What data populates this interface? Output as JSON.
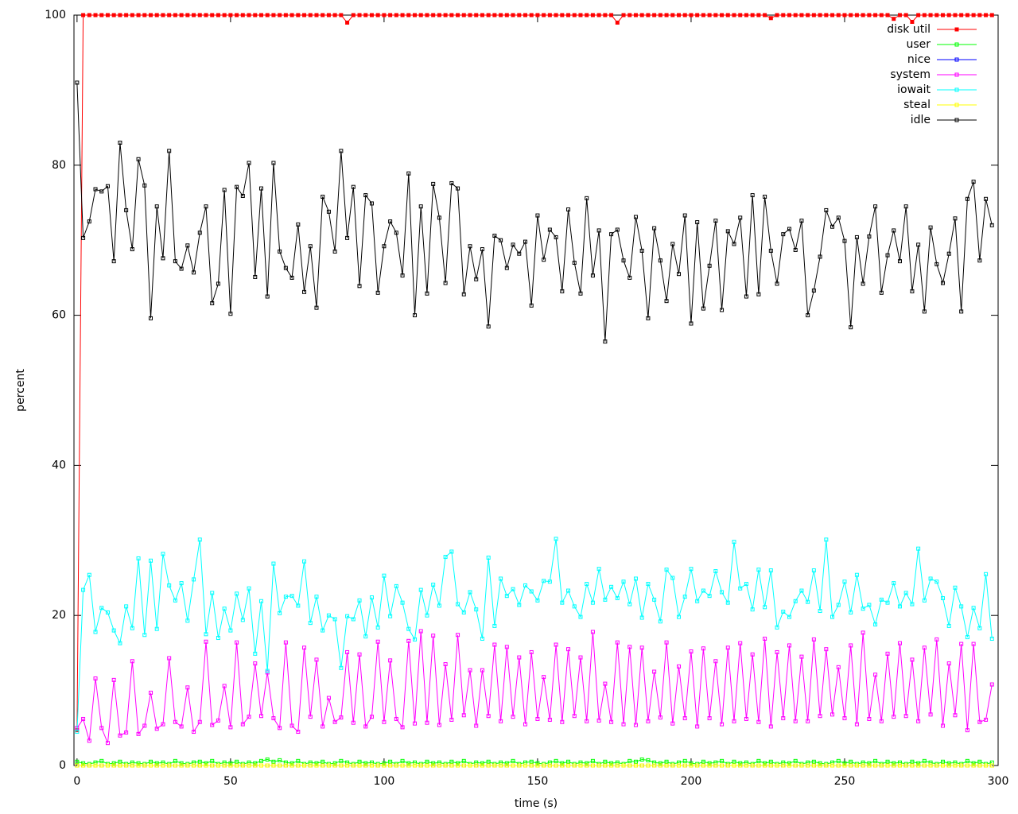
{
  "chart_data": {
    "type": "line",
    "xlabel": "time (s)",
    "ylabel": "percent",
    "xlim": [
      -1,
      300
    ],
    "ylim": [
      0,
      100
    ],
    "xticks": [
      0,
      50,
      100,
      150,
      200,
      250,
      300
    ],
    "yticks": [
      0,
      20,
      40,
      60,
      80,
      100
    ],
    "grid": false,
    "legend": "top-right",
    "x": [
      0,
      2,
      4,
      6,
      8,
      10,
      12,
      14,
      16,
      18,
      20,
      22,
      24,
      26,
      28,
      30,
      32,
      34,
      36,
      38,
      40,
      42,
      44,
      46,
      48,
      50,
      52,
      54,
      56,
      58,
      60,
      62,
      64,
      66,
      68,
      70,
      72,
      74,
      76,
      78,
      80,
      82,
      84,
      86,
      88,
      90,
      92,
      94,
      96,
      98,
      100,
      102,
      104,
      106,
      108,
      110,
      112,
      114,
      116,
      118,
      120,
      122,
      124,
      126,
      128,
      130,
      132,
      134,
      136,
      138,
      140,
      142,
      144,
      146,
      148,
      150,
      152,
      154,
      156,
      158,
      160,
      162,
      164,
      166,
      168,
      170,
      172,
      174,
      176,
      178,
      180,
      182,
      184,
      186,
      188,
      190,
      192,
      194,
      196,
      198,
      200,
      202,
      204,
      206,
      208,
      210,
      212,
      214,
      216,
      218,
      220,
      222,
      224,
      226,
      228,
      230,
      232,
      234,
      236,
      238,
      240,
      242,
      244,
      246,
      248,
      250,
      252,
      254,
      256,
      258,
      260,
      262,
      264,
      266,
      268,
      270,
      272,
      274,
      276,
      278,
      280,
      282,
      284,
      286,
      288,
      290,
      292,
      294,
      296,
      298
    ],
    "series": [
      {
        "name": "disk util",
        "color": "#ff0000",
        "filled": true,
        "values": [
          4.7,
          100,
          100,
          100,
          100,
          100,
          100,
          100,
          100,
          100,
          100,
          100,
          100,
          100,
          100,
          100,
          100,
          100,
          100,
          100,
          100,
          100,
          100,
          100,
          100,
          100,
          100,
          100,
          100,
          100,
          100,
          100,
          100,
          100,
          100,
          100,
          100,
          100,
          100,
          100,
          100,
          100,
          100,
          100,
          99,
          100,
          100,
          100,
          100,
          100,
          100,
          100,
          100,
          100,
          100,
          100,
          100,
          100,
          100,
          100,
          100,
          100,
          100,
          100,
          100,
          100,
          100,
          100,
          100,
          100,
          100,
          100,
          100,
          100,
          100,
          100,
          100,
          100,
          100,
          100,
          100,
          100,
          100,
          100,
          100,
          100,
          100,
          100,
          99,
          100,
          100,
          100,
          100,
          100,
          100,
          100,
          100,
          100,
          100,
          100,
          100,
          100,
          100,
          100,
          100,
          100,
          100,
          100,
          100,
          100,
          100,
          100,
          100,
          99.6,
          100,
          100,
          100,
          100,
          100,
          100,
          100,
          100,
          100,
          100,
          100,
          100,
          100,
          100,
          100,
          100,
          100,
          100,
          100,
          99.5,
          100,
          100,
          99.1,
          100,
          100,
          100,
          100,
          100,
          100,
          100,
          100,
          100,
          100,
          100,
          100,
          100
        ]
      },
      {
        "name": "user",
        "color": "#00ff00",
        "values": [
          0.5,
          0.3,
          0.2,
          0.4,
          0.6,
          0.2,
          0.3,
          0.5,
          0.2,
          0.4,
          0.3,
          0.2,
          0.5,
          0.3,
          0.4,
          0.2,
          0.6,
          0.3,
          0.2,
          0.4,
          0.5,
          0.3,
          0.6,
          0.2,
          0.4,
          0.3,
          0.5,
          0.2,
          0.4,
          0.3,
          0.6,
          0.8,
          0.5,
          0.7,
          0.4,
          0.3,
          0.6,
          0.2,
          0.4,
          0.3,
          0.5,
          0.2,
          0.3,
          0.6,
          0.4,
          0.2,
          0.5,
          0.3,
          0.4,
          0.2,
          0.3,
          0.5,
          0.2,
          0.6,
          0.3,
          0.4,
          0.2,
          0.5,
          0.3,
          0.4,
          0.2,
          0.5,
          0.3,
          0.6,
          0.2,
          0.4,
          0.3,
          0.5,
          0.2,
          0.4,
          0.3,
          0.6,
          0.2,
          0.4,
          0.5,
          0.3,
          0.2,
          0.4,
          0.6,
          0.3,
          0.5,
          0.2,
          0.4,
          0.3,
          0.6,
          0.2,
          0.5,
          0.3,
          0.4,
          0.2,
          0.6,
          0.5,
          0.8,
          0.7,
          0.4,
          0.3,
          0.5,
          0.2,
          0.4,
          0.6,
          0.3,
          0.2,
          0.5,
          0.3,
          0.4,
          0.6,
          0.2,
          0.5,
          0.3,
          0.4,
          0.2,
          0.6,
          0.3,
          0.5,
          0.2,
          0.4,
          0.3,
          0.6,
          0.2,
          0.4,
          0.5,
          0.3,
          0.2,
          0.4,
          0.6,
          0.3,
          0.5,
          0.2,
          0.4,
          0.3,
          0.6,
          0.2,
          0.5,
          0.3,
          0.4,
          0.2,
          0.5,
          0.3,
          0.6,
          0.4,
          0.2,
          0.5,
          0.3,
          0.4,
          0.2,
          0.6,
          0.3,
          0.5,
          0.2,
          0.4
        ]
      },
      {
        "name": "nice",
        "color": "#0000ff",
        "values": [
          0,
          0,
          0,
          0,
          0,
          0,
          0,
          0,
          0,
          0,
          0,
          0,
          0,
          0,
          0,
          0,
          0,
          0,
          0,
          0,
          0,
          0,
          0,
          0,
          0,
          0,
          0,
          0,
          0,
          0,
          0,
          0,
          0,
          0,
          0,
          0,
          0,
          0,
          0,
          0,
          0,
          0,
          0,
          0,
          0,
          0,
          0,
          0,
          0,
          0,
          0,
          0,
          0,
          0,
          0,
          0,
          0,
          0,
          0,
          0,
          0,
          0,
          0,
          0,
          0,
          0,
          0,
          0,
          0,
          0,
          0,
          0,
          0,
          0,
          0,
          0,
          0,
          0,
          0,
          0,
          0,
          0,
          0,
          0,
          0,
          0,
          0,
          0,
          0,
          0,
          0,
          0,
          0,
          0,
          0,
          0,
          0,
          0,
          0,
          0,
          0,
          0,
          0,
          0,
          0,
          0,
          0,
          0,
          0,
          0,
          0,
          0,
          0,
          0,
          0,
          0,
          0,
          0,
          0,
          0,
          0,
          0,
          0,
          0,
          0,
          0,
          0,
          0,
          0,
          0,
          0,
          0,
          0,
          0,
          0,
          0,
          0,
          0,
          0,
          0,
          0,
          0,
          0,
          0,
          0,
          0,
          0,
          0,
          0,
          0
        ]
      },
      {
        "name": "system",
        "color": "#ff00ff",
        "values": [
          5,
          6.2,
          3.3,
          11.6,
          5,
          3,
          11.4,
          4,
          4.4,
          13.9,
          4.2,
          5.3,
          9.7,
          4.9,
          5.5,
          14.3,
          5.8,
          5.2,
          10.4,
          4.5,
          5.8,
          16.5,
          5.4,
          6,
          10.6,
          5.1,
          16.4,
          5.5,
          6.5,
          13.6,
          6.6,
          12.4,
          6.3,
          5,
          16.4,
          5.3,
          4.5,
          15.7,
          6.5,
          14.1,
          5.2,
          9,
          5.8,
          6.4,
          15.1,
          5.7,
          14.8,
          5.2,
          6.5,
          16.5,
          5.8,
          14,
          6.2,
          5.1,
          16.6,
          5.6,
          17.9,
          5.7,
          17.3,
          5.4,
          13.5,
          6.1,
          17.4,
          6.7,
          12.7,
          5.3,
          12.7,
          6.6,
          16.1,
          5.9,
          15.8,
          6.5,
          14.4,
          5.5,
          15.1,
          6.2,
          11.8,
          6.1,
          16.1,
          5.8,
          15.5,
          6.6,
          14.4,
          5.9,
          17.8,
          6,
          10.9,
          5.8,
          16.4,
          5.5,
          15.8,
          5.4,
          15.7,
          5.9,
          12.5,
          6.4,
          16.4,
          5.6,
          13.2,
          6.3,
          15.2,
          5.2,
          15.6,
          6.3,
          13.9,
          5.5,
          15.7,
          5.9,
          16.3,
          6.2,
          14.8,
          5.8,
          16.9,
          5.2,
          15.1,
          6.3,
          16,
          5.9,
          14.5,
          5.9,
          16.8,
          6.6,
          15.5,
          6.8,
          13.1,
          6.3,
          16,
          5.5,
          17.7,
          6.2,
          12.1,
          5.9,
          14.9,
          6.5,
          16.3,
          6.6,
          14.1,
          5.9,
          15.7,
          6.8,
          16.8,
          5.3,
          13.6,
          6.7,
          16.2,
          4.7,
          16.2,
          5.8,
          6.1,
          10.8
        ]
      },
      {
        "name": "iowait",
        "color": "#00ffff",
        "values": [
          4.5,
          23.4,
          25.4,
          17.8,
          21,
          20.4,
          18,
          16.3,
          21.2,
          18.3,
          27.6,
          17.4,
          27.3,
          18.2,
          28.2,
          24,
          22,
          24.3,
          19.3,
          24.8,
          30.1,
          17.5,
          23,
          17,
          20.9,
          18,
          22.9,
          19.4,
          23.6,
          14.9,
          21.9,
          12.6,
          26.9,
          20.3,
          22.5,
          22.6,
          21.3,
          27.2,
          19,
          22.5,
          18,
          20,
          19.5,
          13,
          19.9,
          19.5,
          22,
          17.2,
          22.4,
          18.4,
          25.3,
          19.9,
          23.9,
          21.7,
          18.2,
          16.8,
          23.4,
          20,
          24.1,
          21.3,
          27.8,
          28.5,
          21.5,
          20.4,
          23.1,
          20.8,
          16.9,
          27.7,
          18.6,
          24.9,
          22.6,
          23.5,
          21.4,
          24,
          23.2,
          22,
          24.6,
          24.5,
          30.2,
          21.7,
          23.3,
          21.2,
          19.8,
          24.2,
          21.7,
          26.2,
          22.1,
          23.8,
          22.3,
          24.5,
          21.5,
          24.9,
          19.7,
          24.2,
          22.1,
          19.2,
          26.1,
          25,
          19.8,
          22.5,
          26.2,
          21.9,
          23.3,
          22.6,
          25.9,
          23.1,
          21.7,
          29.8,
          23.6,
          24.2,
          20.8,
          26.1,
          21.1,
          26,
          18.4,
          20.5,
          19.8,
          21.9,
          23.3,
          21.8,
          26,
          20.6,
          30.1,
          19.8,
          21.4,
          24.5,
          20.4,
          25.4,
          20.9,
          21.4,
          18.8,
          22.1,
          21.7,
          24.3,
          21.2,
          23,
          21.5,
          28.9,
          22,
          24.9,
          24.5,
          22.3,
          18.6,
          23.7,
          21.2,
          17.1,
          21,
          18.3,
          25.5,
          16.9
        ]
      },
      {
        "name": "steal",
        "color": "#ffff00",
        "values": [
          0,
          0,
          0,
          0,
          0,
          0,
          0,
          0,
          0,
          0,
          0,
          0,
          0,
          0,
          0,
          0,
          0,
          0,
          0,
          0,
          0,
          0,
          0,
          0,
          0,
          0,
          0,
          0,
          0,
          0,
          0,
          0,
          0,
          0,
          0,
          0,
          0,
          0,
          0,
          0,
          0,
          0,
          0,
          0,
          0,
          0,
          0,
          0,
          0,
          0,
          0,
          0,
          0,
          0,
          0,
          0,
          0,
          0,
          0,
          0,
          0,
          0,
          0,
          0,
          0,
          0,
          0,
          0,
          0,
          0,
          0,
          0,
          0,
          0,
          0,
          0,
          0,
          0,
          0,
          0,
          0,
          0,
          0,
          0,
          0,
          0,
          0,
          0,
          0,
          0,
          0,
          0,
          0,
          0,
          0,
          0,
          0,
          0,
          0,
          0,
          0,
          0,
          0,
          0,
          0,
          0,
          0,
          0,
          0,
          0,
          0,
          0,
          0,
          0,
          0,
          0,
          0,
          0,
          0,
          0,
          0,
          0,
          0,
          0,
          0,
          0,
          0,
          0,
          0,
          0,
          0,
          0,
          0,
          0,
          0,
          0,
          0,
          0,
          0,
          0,
          0,
          0,
          0,
          0,
          0,
          0,
          0,
          0,
          0,
          0
        ]
      },
      {
        "name": "idle",
        "color": "#000000",
        "values": [
          91,
          70.3,
          72.5,
          76.8,
          76.5,
          77.2,
          67.2,
          83,
          74,
          68.8,
          80.8,
          77.3,
          59.6,
          74.5,
          67.6,
          81.9,
          67.2,
          66.2,
          69.3,
          65.7,
          71,
          74.5,
          61.6,
          64.2,
          76.7,
          60.2,
          77.1,
          75.9,
          80.3,
          65.1,
          76.9,
          62.5,
          80.3,
          68.5,
          66.3,
          65,
          72.1,
          63.1,
          69.2,
          61,
          75.8,
          73.8,
          68.5,
          81.9,
          70.3,
          77.1,
          63.9,
          76,
          74.9,
          63,
          69.2,
          72.5,
          71,
          65.3,
          78.9,
          60,
          74.5,
          62.9,
          77.5,
          73,
          64.3,
          77.6,
          76.9,
          62.8,
          69.2,
          64.8,
          68.8,
          58.5,
          70.6,
          70,
          66.3,
          69.4,
          68.2,
          69.8,
          61.3,
          73.3,
          67.4,
          71.4,
          70.4,
          63.2,
          74.1,
          67,
          62.9,
          75.6,
          65.3,
          71.3,
          56.5,
          70.8,
          71.4,
          67.3,
          65,
          73.1,
          68.6,
          59.6,
          71.6,
          67.3,
          61.9,
          69.5,
          65.5,
          73.3,
          58.9,
          72.4,
          60.9,
          66.6,
          72.6,
          60.7,
          71.2,
          69.5,
          73,
          62.5,
          76,
          62.8,
          75.8,
          68.6,
          64.2,
          70.8,
          71.5,
          68.7,
          72.6,
          60,
          63.3,
          67.8,
          74,
          71.8,
          73,
          69.9,
          58.4,
          70.4,
          64.2,
          70.5,
          74.5,
          63,
          68,
          71.3,
          67.2,
          74.5,
          63.2,
          69.4,
          60.5,
          71.7,
          66.8,
          64.3,
          68.2,
          72.9,
          60.5,
          75.5,
          77.8,
          67.3,
          75.5,
          72
        ]
      }
    ]
  }
}
